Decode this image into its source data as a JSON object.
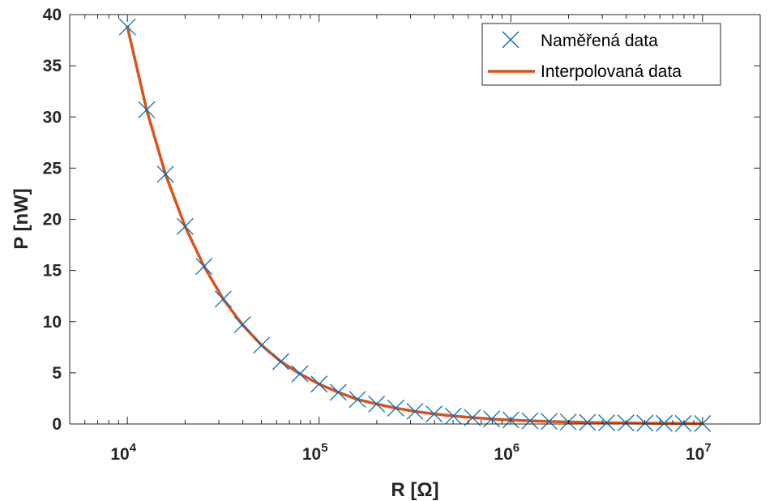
{
  "chart_data": {
    "type": "scatter",
    "xscale": "log",
    "xlim": [
      5000,
      20000000
    ],
    "ylim": [
      0,
      40
    ],
    "xlabel": "R [Ω]",
    "ylabel": "P [nW]",
    "xticks": [
      {
        "value": 10000,
        "base": "10",
        "exp": "4"
      },
      {
        "value": 100000,
        "base": "10",
        "exp": "5"
      },
      {
        "value": 1000000,
        "base": "10",
        "exp": "6"
      },
      {
        "value": 10000000,
        "base": "10",
        "exp": "7"
      }
    ],
    "yticks": [
      "0",
      "5",
      "10",
      "15",
      "20",
      "25",
      "30",
      "35",
      "40"
    ],
    "grid": false,
    "legend_position": "top-right",
    "series": [
      {
        "name": "Naměřená data",
        "kind": "markers",
        "marker": "x",
        "color": "#0072BD",
        "x": [
          10000,
          12600,
          15800,
          20000,
          25100,
          31600,
          39800,
          50100,
          63100,
          79400,
          100000,
          125900,
          158500,
          199500,
          251200,
          316200,
          398100,
          501200,
          631000,
          794300,
          1000000,
          1259000,
          1585000,
          1995000,
          2512000,
          3162000,
          3981000,
          5012000,
          6310000,
          7943000,
          10000000
        ],
        "y": [
          38.8,
          30.7,
          24.4,
          19.3,
          15.4,
          12.2,
          9.7,
          7.7,
          6.1,
          4.9,
          3.9,
          3.1,
          2.4,
          1.95,
          1.55,
          1.23,
          0.98,
          0.78,
          0.62,
          0.49,
          0.39,
          0.31,
          0.25,
          0.2,
          0.16,
          0.12,
          0.1,
          0.08,
          0.06,
          0.05,
          0.04
        ]
      },
      {
        "name": "Interpolovaná data",
        "kind": "line",
        "color": "#D95319",
        "x": [
          10000,
          12600,
          15800,
          20000,
          25100,
          31600,
          39800,
          50100,
          63100,
          79400,
          100000,
          125900,
          158500,
          199500,
          251200,
          316200,
          398100,
          501200,
          631000,
          794300,
          1000000,
          1259000,
          1585000,
          1995000,
          2512000,
          3162000,
          3981000,
          5012000,
          6310000,
          7943000,
          10000000
        ],
        "y": [
          38.8,
          30.7,
          24.4,
          19.3,
          15.4,
          12.2,
          9.7,
          7.7,
          6.1,
          4.9,
          3.9,
          3.1,
          2.4,
          1.95,
          1.55,
          1.23,
          0.98,
          0.78,
          0.62,
          0.49,
          0.39,
          0.31,
          0.25,
          0.2,
          0.16,
          0.12,
          0.1,
          0.08,
          0.06,
          0.05,
          0.04
        ]
      }
    ]
  }
}
